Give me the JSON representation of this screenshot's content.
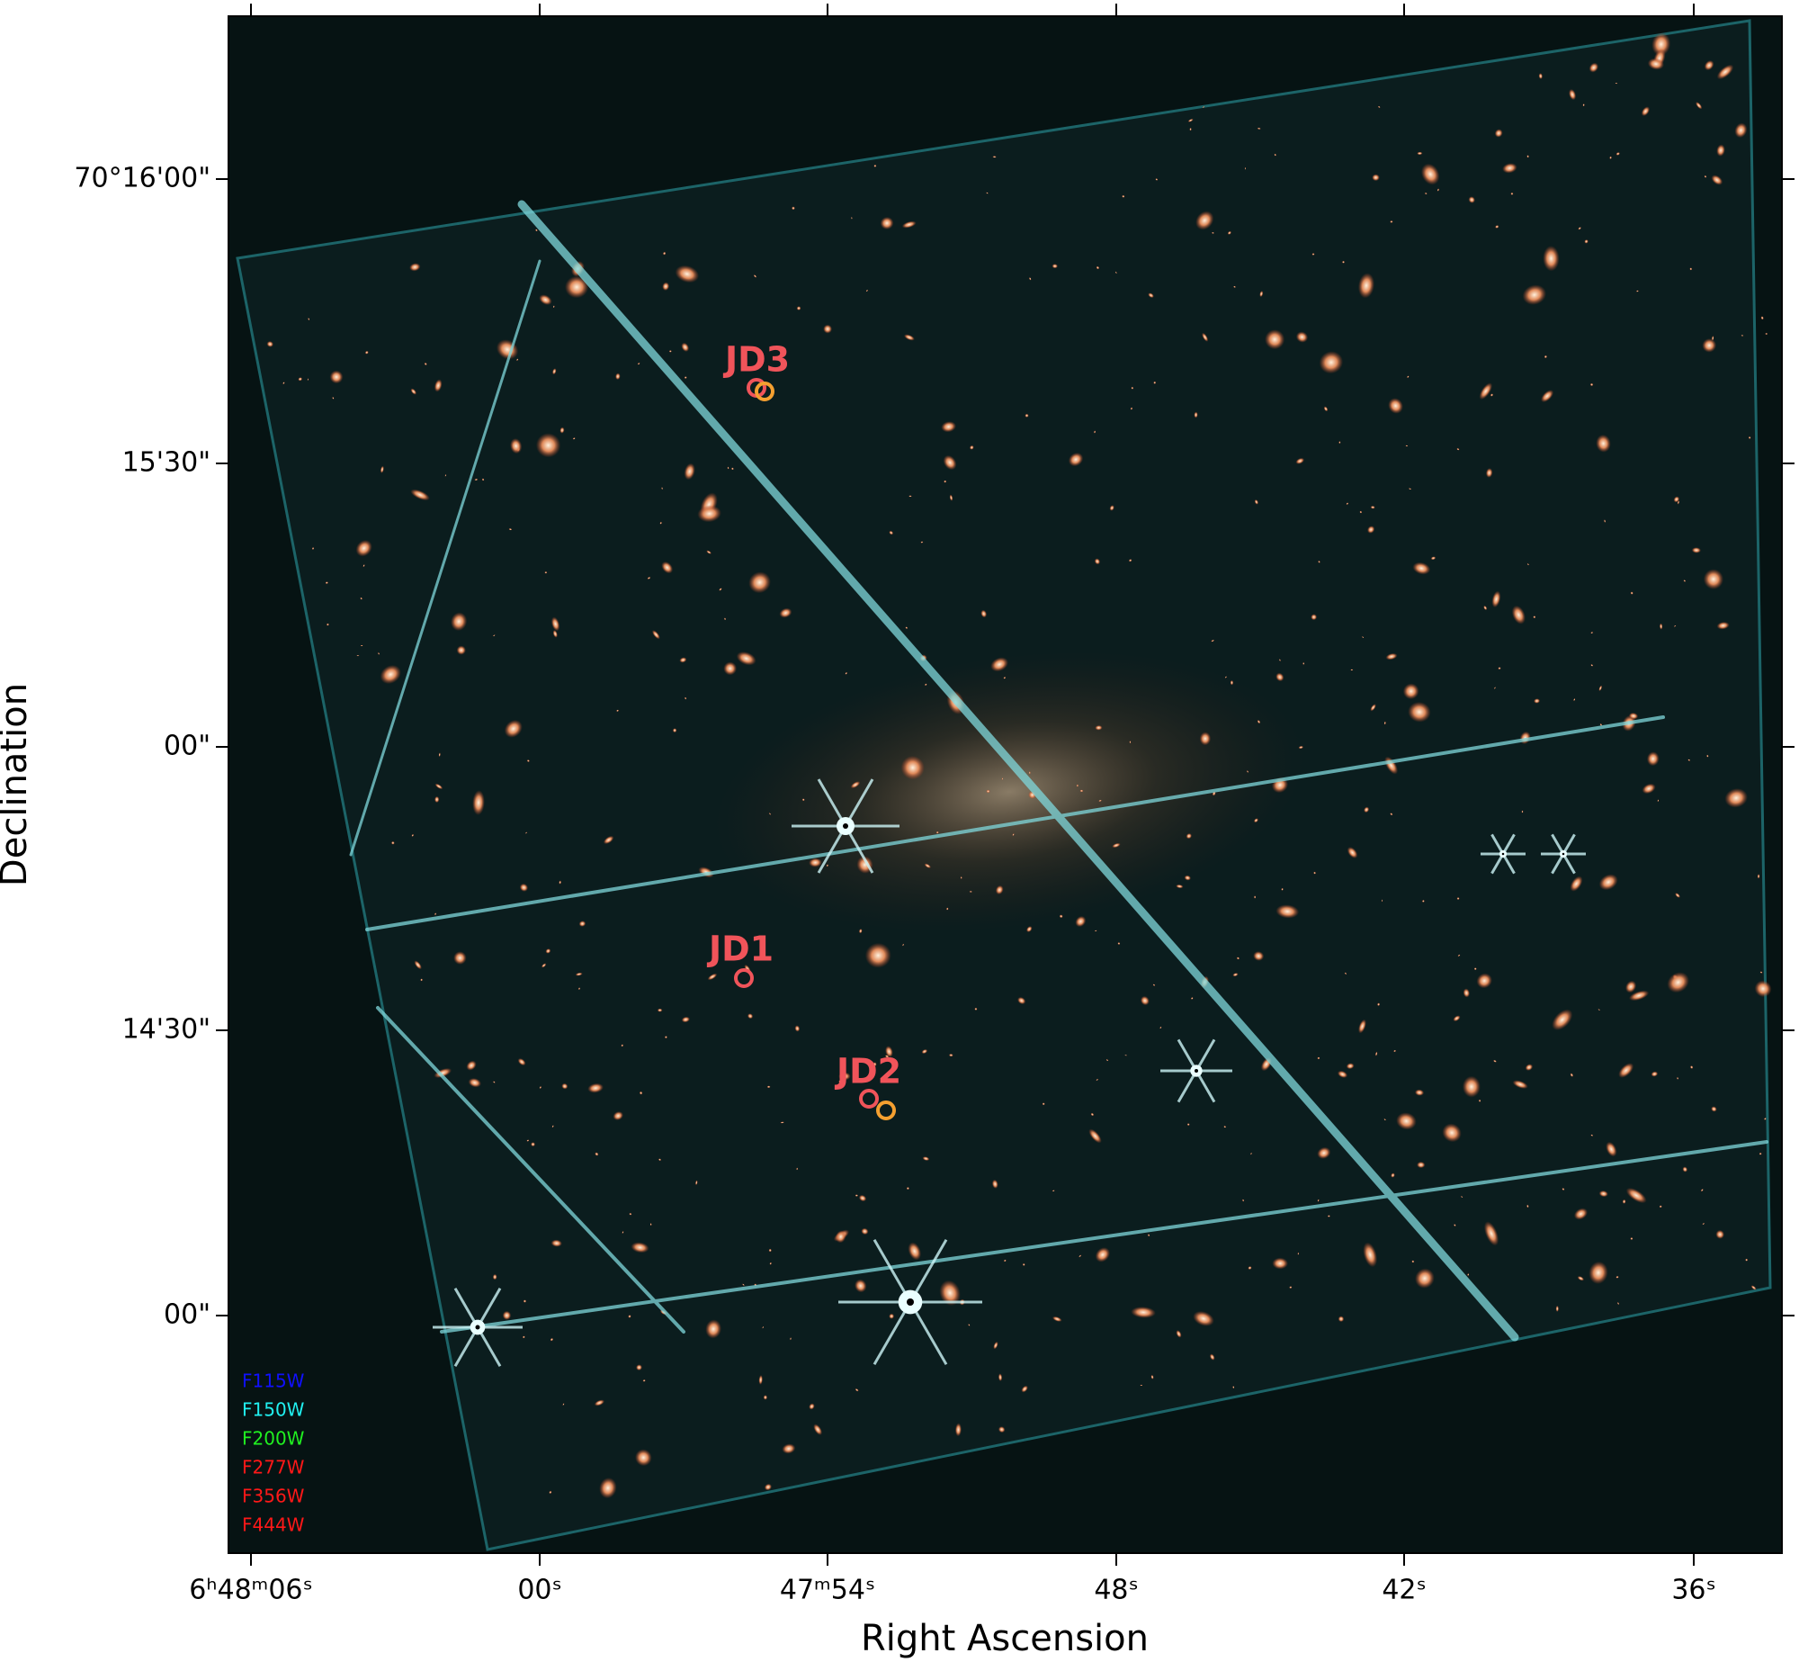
{
  "axes": {
    "x_label": "Right Ascension",
    "y_label": "Declination",
    "x_ticks": [
      "6ʰ48ᵐ06ˢ",
      "00ˢ",
      "47ᵐ54ˢ",
      "48ˢ",
      "42ˢ",
      "36ˢ"
    ],
    "y_ticks": [
      "70°16'00\"",
      "15'30\"",
      "00\"",
      "14'30\"",
      "00\""
    ]
  },
  "annotations": [
    {
      "label": "JD3"
    },
    {
      "label": "JD1"
    },
    {
      "label": "JD2"
    }
  ],
  "legend": [
    {
      "label": "F115W",
      "color": "#1010ff"
    },
    {
      "label": "F150W",
      "color": "#20f0f0"
    },
    {
      "label": "F200W",
      "color": "#20f020"
    },
    {
      "label": "F277W",
      "color": "#ff1818"
    },
    {
      "label": "F356W",
      "color": "#ff1818"
    },
    {
      "label": "F444W",
      "color": "#ff1818"
    }
  ]
}
